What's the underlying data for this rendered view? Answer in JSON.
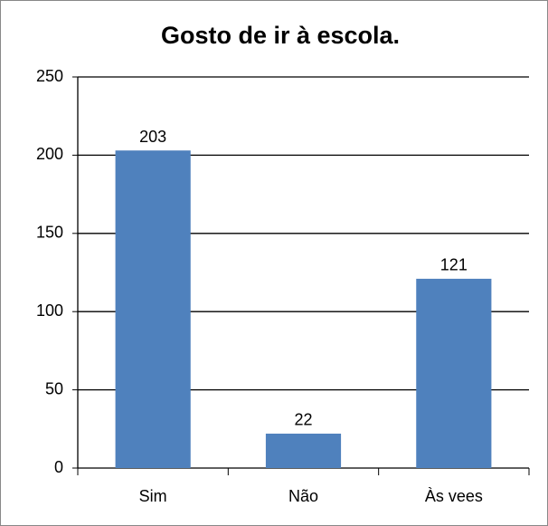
{
  "chart_data": {
    "type": "bar",
    "title": "Gosto de ir à escola.",
    "categories": [
      "Sim",
      "Não",
      "Às vees"
    ],
    "values": [
      203,
      22,
      121
    ],
    "color": "#4f81bd",
    "ylim": [
      0,
      250
    ],
    "yticks": [
      0,
      50,
      100,
      150,
      200,
      250
    ],
    "grid": true
  }
}
